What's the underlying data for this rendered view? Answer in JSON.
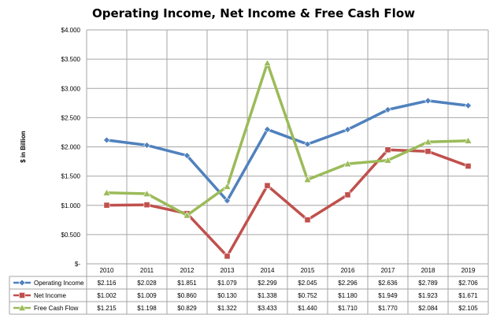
{
  "chart_data": {
    "type": "line",
    "title": "Operating Income, Net Income & Free Cash Flow",
    "ylabel": "$ in Billion",
    "xlabel": "",
    "categories": [
      "2010",
      "2011",
      "2012",
      "2013",
      "2014",
      "2015",
      "2016",
      "2017",
      "2018",
      "2019"
    ],
    "ylim": [
      0,
      4
    ],
    "yticks": [
      0,
      0.5,
      1,
      1.5,
      2,
      2.5,
      3,
      3.5,
      4
    ],
    "ytick_labels": [
      "$-",
      "$0.500",
      "$1.000",
      "$1.500",
      "$2.000",
      "$2.500",
      "$3.000",
      "$3.500",
      "$4.000"
    ],
    "grid": true,
    "legend": "data-table-bottom",
    "series": [
      {
        "name": "Operating Income",
        "color": "#4f81bd",
        "marker": "diamond",
        "values": [
          2.116,
          2.028,
          1.851,
          1.079,
          2.299,
          2.045,
          2.296,
          2.636,
          2.789,
          2.706
        ],
        "labels": [
          "$2.116",
          "$2.028",
          "$1.851",
          "$1.079",
          "$2.299",
          "$2.045",
          "$2.296",
          "$2.636",
          "$2.789",
          "$2.706"
        ]
      },
      {
        "name": "Net Income",
        "color": "#c0504d",
        "marker": "square",
        "values": [
          1.002,
          1.009,
          0.86,
          0.13,
          1.338,
          0.752,
          1.18,
          1.949,
          1.923,
          1.671
        ],
        "labels": [
          "$1.002",
          "$1.009",
          "$0.860",
          "$0.130",
          "$1.338",
          "$0.752",
          "$1.180",
          "$1.949",
          "$1.923",
          "$1.671"
        ]
      },
      {
        "name": "Free Cash Flow",
        "color": "#9bbb59",
        "marker": "triangle",
        "values": [
          1.215,
          1.198,
          0.829,
          1.322,
          3.433,
          1.44,
          1.71,
          1.77,
          2.084,
          2.105
        ],
        "labels": [
          "$1.215",
          "$1.198",
          "$0.829",
          "$1.322",
          "$3.433",
          "$1.440",
          "$1.710",
          "$1.770",
          "$2.084",
          "$2.105"
        ]
      }
    ]
  }
}
